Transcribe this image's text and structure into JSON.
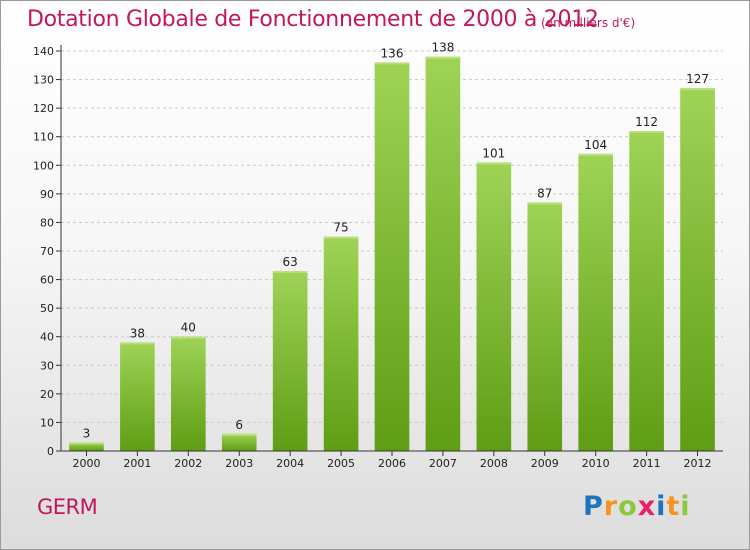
{
  "header": {
    "title": "Dotation Globale de Fonctionnement de 2000 à 2012",
    "subtitle": "(en milliers d'€)"
  },
  "footer": {
    "commune": "GERM",
    "logo_text": "Proxiti",
    "logo_colors": [
      "#1e73be",
      "#f7941d",
      "#8dc63f",
      "#e91e63",
      "#1e73be",
      "#f7941d",
      "#8dc63f"
    ]
  },
  "chart_data": {
    "type": "bar",
    "title": "Dotation Globale de Fonctionnement de 2000 à 2012",
    "subtitle": "(en milliers d'€)",
    "categories": [
      "2000",
      "2001",
      "2002",
      "2003",
      "2004",
      "2005",
      "2006",
      "2007",
      "2008",
      "2009",
      "2010",
      "2011",
      "2012"
    ],
    "values": [
      3,
      38,
      40,
      6,
      63,
      75,
      136,
      138,
      101,
      87,
      104,
      112,
      127
    ],
    "ylim": [
      0,
      140
    ],
    "yticks": [
      0,
      10,
      20,
      30,
      40,
      50,
      60,
      70,
      80,
      90,
      100,
      110,
      120,
      130,
      140
    ],
    "grid": "horizontal-dashed",
    "bar_color_light": "#9fd356",
    "bar_color_dark": "#5f9d14",
    "legend": "none"
  }
}
